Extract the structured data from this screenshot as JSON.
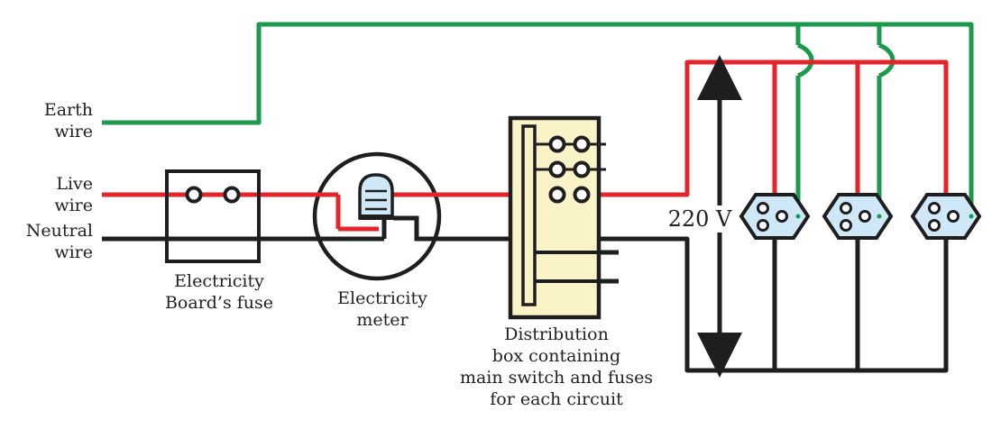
{
  "labels": {
    "earth": [
      "Earth",
      "wire"
    ],
    "live": [
      "Live",
      "wire"
    ],
    "neutral": [
      "Neutral",
      "wire"
    ],
    "fuse": [
      "Electricity",
      "Board’s fuse"
    ],
    "meter": [
      "Electricity",
      "meter"
    ],
    "distribution": [
      "Distribution",
      "box containing",
      "main switch and fuses",
      "for each circuit"
    ],
    "voltage": "220 V"
  },
  "colors": {
    "earth": "#1a9a4a",
    "live": "#e3242b",
    "neutral": "#1e1e1e",
    "distribution_box": "#fbf3c8",
    "socket_fill": "#cfe8f7"
  },
  "icons": {
    "fuse": "fuse-box-icon",
    "meter": "electricity-meter-icon",
    "distribution": "distribution-box-icon",
    "socket": "socket-icon"
  }
}
